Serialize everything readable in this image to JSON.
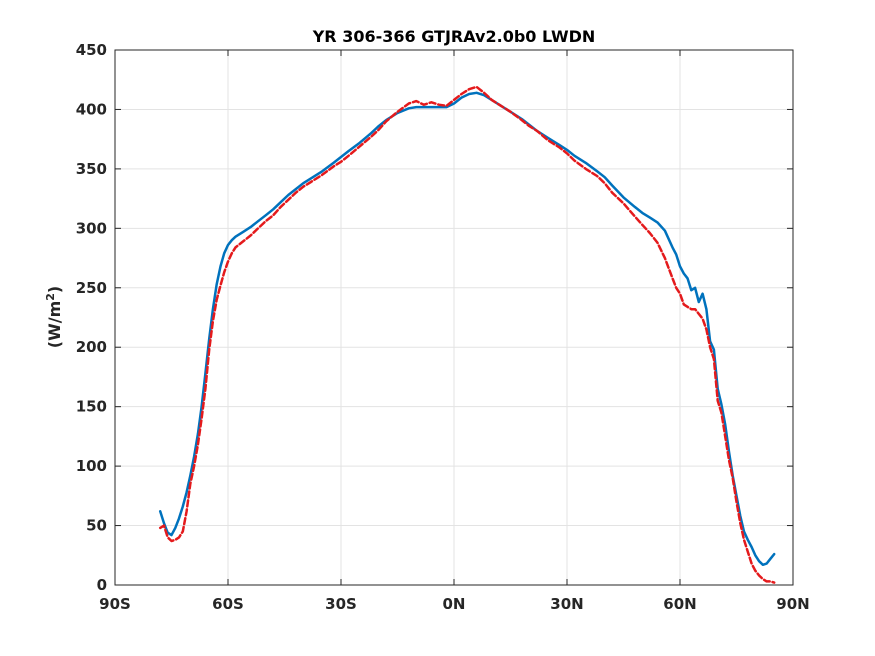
{
  "chart_data": {
    "type": "line",
    "title": "YR 306-366 GTJRAv2.0b0 LWDN",
    "xlabel": "",
    "ylabel": "(W/m",
    "ylabel_sup": "2",
    "ylabel_suffix": ")",
    "xlim": [
      -90,
      90
    ],
    "ylim": [
      0,
      450
    ],
    "xticks": [
      {
        "value": -90,
        "label": "90S"
      },
      {
        "value": -60,
        "label": "60S"
      },
      {
        "value": -30,
        "label": "30S"
      },
      {
        "value": 0,
        "label": "0N"
      },
      {
        "value": 30,
        "label": "30N"
      },
      {
        "value": 60,
        "label": "60N"
      },
      {
        "value": 90,
        "label": "90N"
      }
    ],
    "yticks": [
      0,
      50,
      100,
      150,
      200,
      250,
      300,
      350,
      400,
      450
    ],
    "grid": true,
    "series": [
      {
        "color": "#0072bd",
        "style": "solid",
        "x": [
          -78,
          -77,
          -76,
          -75,
          -74,
          -73,
          -72,
          -71,
          -70,
          -69,
          -68,
          -67,
          -66,
          -65,
          -64,
          -63,
          -62,
          -61,
          -60,
          -59,
          -58,
          -56,
          -54,
          -52,
          -50,
          -48,
          -46,
          -44,
          -42,
          -40,
          -38,
          -35,
          -32,
          -30,
          -28,
          -25,
          -22,
          -20,
          -18,
          -15,
          -12,
          -10,
          -8,
          -6,
          -4,
          -2,
          0,
          2,
          4,
          6,
          8,
          10,
          12,
          15,
          18,
          20,
          22,
          25,
          28,
          30,
          32,
          35,
          38,
          40,
          42,
          45,
          48,
          50,
          52,
          54,
          56,
          58,
          59,
          60,
          61,
          62,
          63,
          64,
          65,
          66,
          67,
          68,
          69,
          70,
          71,
          72,
          73,
          74,
          75,
          76,
          77,
          78,
          79,
          80,
          81,
          82,
          83,
          84,
          85
        ],
        "y": [
          62,
          52,
          44,
          42,
          48,
          56,
          66,
          78,
          92,
          108,
          127,
          150,
          178,
          207,
          232,
          253,
          268,
          279,
          286,
          290,
          293,
          297,
          301,
          306,
          311,
          316,
          322,
          328,
          333,
          338,
          342,
          348,
          355,
          360,
          365,
          372,
          380,
          386,
          391,
          397,
          401,
          402,
          402,
          402,
          402,
          402,
          405,
          410,
          413,
          414,
          412,
          408,
          404,
          398,
          392,
          387,
          382,
          376,
          370,
          366,
          361,
          355,
          348,
          343,
          336,
          326,
          318,
          313,
          309,
          305,
          298,
          284,
          278,
          268,
          262,
          258,
          248,
          250,
          238,
          245,
          232,
          205,
          198,
          165,
          152,
          135,
          112,
          92,
          75,
          58,
          45,
          38,
          32,
          25,
          20,
          17,
          18,
          22,
          26
        ]
      },
      {
        "color": "#e41a1c",
        "style": "dashed",
        "x": [
          -78,
          -77,
          -76,
          -75,
          -74,
          -73,
          -72,
          -71,
          -70,
          -69,
          -68,
          -67,
          -66,
          -65,
          -64,
          -63,
          -62,
          -61,
          -60,
          -59,
          -58,
          -56,
          -54,
          -52,
          -50,
          -48,
          -46,
          -44,
          -42,
          -40,
          -38,
          -35,
          -32,
          -30,
          -28,
          -25,
          -22,
          -20,
          -18,
          -15,
          -12,
          -10,
          -8,
          -6,
          -4,
          -2,
          0,
          2,
          4,
          6,
          8,
          10,
          12,
          15,
          18,
          20,
          22,
          25,
          28,
          30,
          32,
          35,
          38,
          40,
          42,
          45,
          48,
          50,
          52,
          54,
          56,
          58,
          59,
          60,
          61,
          62,
          63,
          64,
          65,
          66,
          67,
          68,
          69,
          70,
          71,
          72,
          73,
          74,
          75,
          76,
          77,
          78,
          79,
          80,
          81,
          82,
          83,
          84,
          85
        ],
        "y": [
          48,
          50,
          40,
          37,
          38,
          40,
          45,
          62,
          85,
          100,
          118,
          140,
          165,
          198,
          222,
          240,
          252,
          263,
          272,
          279,
          284,
          289,
          294,
          300,
          306,
          311,
          318,
          324,
          330,
          335,
          339,
          345,
          352,
          356,
          361,
          369,
          377,
          383,
          390,
          398,
          405,
          407,
          404,
          406,
          404,
          403,
          408,
          413,
          417,
          419,
          414,
          408,
          404,
          398,
          391,
          386,
          382,
          374,
          368,
          363,
          357,
          350,
          344,
          338,
          330,
          321,
          310,
          303,
          296,
          288,
          275,
          258,
          250,
          245,
          236,
          234,
          232,
          232,
          228,
          224,
          215,
          200,
          190,
          155,
          145,
          125,
          105,
          90,
          70,
          52,
          38,
          28,
          18,
          12,
          8,
          5,
          3,
          3,
          2
        ]
      }
    ]
  }
}
